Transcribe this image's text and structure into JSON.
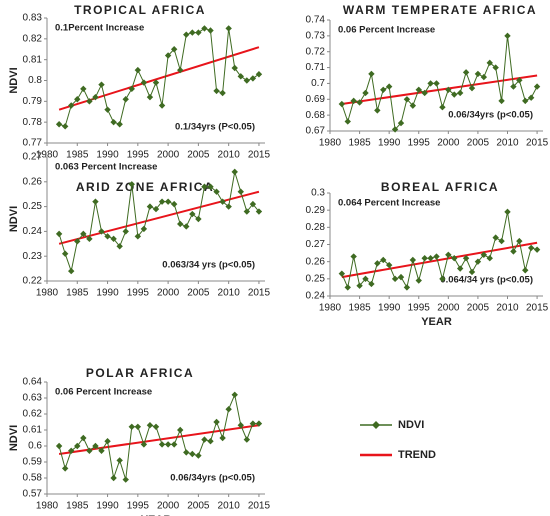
{
  "legend": [
    {
      "name": "NDVI",
      "color": "#3f6b22"
    },
    {
      "name": "TREND",
      "color": "#e8141b"
    }
  ],
  "chart_data": [
    {
      "type": "line",
      "title": "TROPICAL AFRICA",
      "ylabel": "NDVI",
      "annotations": [
        "0.1Percent Increase",
        "0.1/34yrs (P<0.05)"
      ],
      "x": [
        1982,
        1983,
        1984,
        1985,
        1986,
        1987,
        1988,
        1989,
        1990,
        1991,
        1992,
        1993,
        1994,
        1995,
        1996,
        1997,
        1998,
        1999,
        2000,
        2001,
        2002,
        2003,
        2004,
        2005,
        2006,
        2007,
        2008,
        2009,
        2010,
        2011,
        2012,
        2013,
        2014,
        2015
      ],
      "values": [
        0.779,
        0.778,
        0.788,
        0.791,
        0.796,
        0.79,
        0.792,
        0.798,
        0.786,
        0.78,
        0.779,
        0.791,
        0.796,
        0.805,
        0.799,
        0.792,
        0.799,
        0.788,
        0.812,
        0.815,
        0.805,
        0.822,
        0.823,
        0.823,
        0.825,
        0.824,
        0.795,
        0.794,
        0.825,
        0.806,
        0.802,
        0.8,
        0.801,
        0.803
      ],
      "trend": {
        "x": [
          1982,
          2015
        ],
        "values": [
          0.786,
          0.816
        ]
      },
      "xlim": [
        1980,
        2016
      ],
      "xticks": [
        1980,
        1985,
        1990,
        1995,
        2000,
        2005,
        2010,
        2015
      ],
      "ylim": [
        0.77,
        0.83
      ],
      "yticks": [
        0.77,
        0.78,
        0.79,
        0.8,
        0.81,
        0.82,
        0.83
      ]
    },
    {
      "type": "line",
      "title": "WARM TEMPERATE AFRICA",
      "annotations": [
        "0.06 Percent Increase",
        "0.06/34yrs (p<0.05)"
      ],
      "x": [
        1982,
        1983,
        1984,
        1985,
        1986,
        1987,
        1988,
        1989,
        1990,
        1991,
        1992,
        1993,
        1994,
        1995,
        1996,
        1997,
        1998,
        1999,
        2000,
        2001,
        2002,
        2003,
        2004,
        2005,
        2006,
        2007,
        2008,
        2009,
        2010,
        2011,
        2012,
        2013,
        2014,
        2015
      ],
      "values": [
        0.687,
        0.676,
        0.689,
        0.688,
        0.694,
        0.706,
        0.683,
        0.696,
        0.698,
        0.671,
        0.675,
        0.69,
        0.686,
        0.696,
        0.694,
        0.7,
        0.7,
        0.685,
        0.696,
        0.693,
        0.694,
        0.707,
        0.697,
        0.706,
        0.704,
        0.713,
        0.71,
        0.689,
        0.73,
        0.698,
        0.702,
        0.689,
        0.691,
        0.698
      ],
      "trend": {
        "x": [
          1982,
          2015
        ],
        "values": [
          0.687,
          0.705
        ]
      },
      "xlim": [
        1980,
        2016
      ],
      "xticks": [
        1980,
        1985,
        1990,
        1995,
        2000,
        2005,
        2010,
        2015
      ],
      "ylim": [
        0.67,
        0.74
      ],
      "yticks": [
        0.67,
        0.68,
        0.69,
        0.7,
        0.71,
        0.72,
        0.73,
        0.74
      ]
    },
    {
      "type": "line",
      "title": "ARID ZONE AFRICA",
      "ylabel": "NDVI",
      "annotations": [
        "0.063 Percent Increase",
        "0.063/34 yrs (p<0.05)"
      ],
      "x": [
        1982,
        1983,
        1984,
        1985,
        1986,
        1987,
        1988,
        1989,
        1990,
        1991,
        1992,
        1993,
        1994,
        1995,
        1996,
        1997,
        1998,
        1999,
        2000,
        2001,
        2002,
        2003,
        2004,
        2005,
        2006,
        2007,
        2008,
        2009,
        2010,
        2011,
        2012,
        2013,
        2014,
        2015
      ],
      "values": [
        0.239,
        0.231,
        0.224,
        0.236,
        0.239,
        0.237,
        0.252,
        0.24,
        0.238,
        0.237,
        0.234,
        0.24,
        0.259,
        0.238,
        0.241,
        0.25,
        0.249,
        0.252,
        0.252,
        0.251,
        0.243,
        0.242,
        0.247,
        0.245,
        0.258,
        0.258,
        0.256,
        0.252,
        0.25,
        0.264,
        0.256,
        0.248,
        0.251,
        0.248
      ],
      "trend": {
        "x": [
          1982,
          2015
        ],
        "values": [
          0.235,
          0.256
        ]
      },
      "xlim": [
        1980,
        2016
      ],
      "xticks": [
        1980,
        1985,
        1990,
        1995,
        2000,
        2005,
        2010,
        2015
      ],
      "ylim": [
        0.22,
        0.27
      ],
      "yticks": [
        0.22,
        0.23,
        0.24,
        0.25,
        0.26,
        0.27
      ]
    },
    {
      "type": "line",
      "title": "BOREAL AFRICA",
      "xlabel": "YEAR",
      "annotations": [
        "0.064 Percent Increase",
        "0.064/34 yrs (p<0.05)"
      ],
      "x": [
        1982,
        1983,
        1984,
        1985,
        1986,
        1987,
        1988,
        1989,
        1990,
        1991,
        1992,
        1993,
        1994,
        1995,
        1996,
        1997,
        1998,
        1999,
        2000,
        2001,
        2002,
        2003,
        2004,
        2005,
        2006,
        2007,
        2008,
        2009,
        2010,
        2011,
        2012,
        2013,
        2014,
        2015
      ],
      "values": [
        0.253,
        0.245,
        0.263,
        0.246,
        0.25,
        0.247,
        0.259,
        0.261,
        0.258,
        0.25,
        0.251,
        0.245,
        0.261,
        0.249,
        0.262,
        0.262,
        0.263,
        0.25,
        0.264,
        0.262,
        0.256,
        0.262,
        0.254,
        0.26,
        0.264,
        0.262,
        0.274,
        0.272,
        0.289,
        0.266,
        0.272,
        0.255,
        0.268,
        0.267
      ],
      "trend": {
        "x": [
          1982,
          2015
        ],
        "values": [
          0.251,
          0.271
        ]
      },
      "xlim": [
        1980,
        2016
      ],
      "xticks": [
        1980,
        1985,
        1990,
        1995,
        2000,
        2005,
        2010,
        2015
      ],
      "ylim": [
        0.24,
        0.3
      ],
      "yticks": [
        0.24,
        0.25,
        0.26,
        0.27,
        0.28,
        0.29,
        0.3
      ]
    },
    {
      "type": "line",
      "title": "POLAR AFRICA",
      "ylabel": "NDVI",
      "xlabel": "YEAR",
      "annotations": [
        "0.06 Percent Increase",
        "0.06/34yrs (p<0.05)"
      ],
      "x": [
        1982,
        1983,
        1984,
        1985,
        1986,
        1987,
        1988,
        1989,
        1990,
        1991,
        1992,
        1993,
        1994,
        1995,
        1996,
        1997,
        1998,
        1999,
        2000,
        2001,
        2002,
        2003,
        2004,
        2005,
        2006,
        2007,
        2008,
        2009,
        2010,
        2011,
        2012,
        2013,
        2014,
        2015
      ],
      "values": [
        0.6,
        0.586,
        0.597,
        0.6,
        0.605,
        0.597,
        0.6,
        0.597,
        0.603,
        0.58,
        0.591,
        0.579,
        0.612,
        0.612,
        0.601,
        0.613,
        0.612,
        0.601,
        0.601,
        0.601,
        0.61,
        0.596,
        0.595,
        0.594,
        0.604,
        0.603,
        0.615,
        0.605,
        0.623,
        0.632,
        0.613,
        0.604,
        0.614,
        0.614
      ],
      "trend": {
        "x": [
          1982,
          2015
        ],
        "values": [
          0.595,
          0.613
        ]
      },
      "xlim": [
        1980,
        2016
      ],
      "xticks": [
        1980,
        1985,
        1990,
        1995,
        2000,
        2005,
        2010,
        2015
      ],
      "ylim": [
        0.57,
        0.64
      ],
      "yticks": [
        0.57,
        0.58,
        0.59,
        0.6,
        0.61,
        0.62,
        0.63,
        0.64
      ]
    }
  ]
}
